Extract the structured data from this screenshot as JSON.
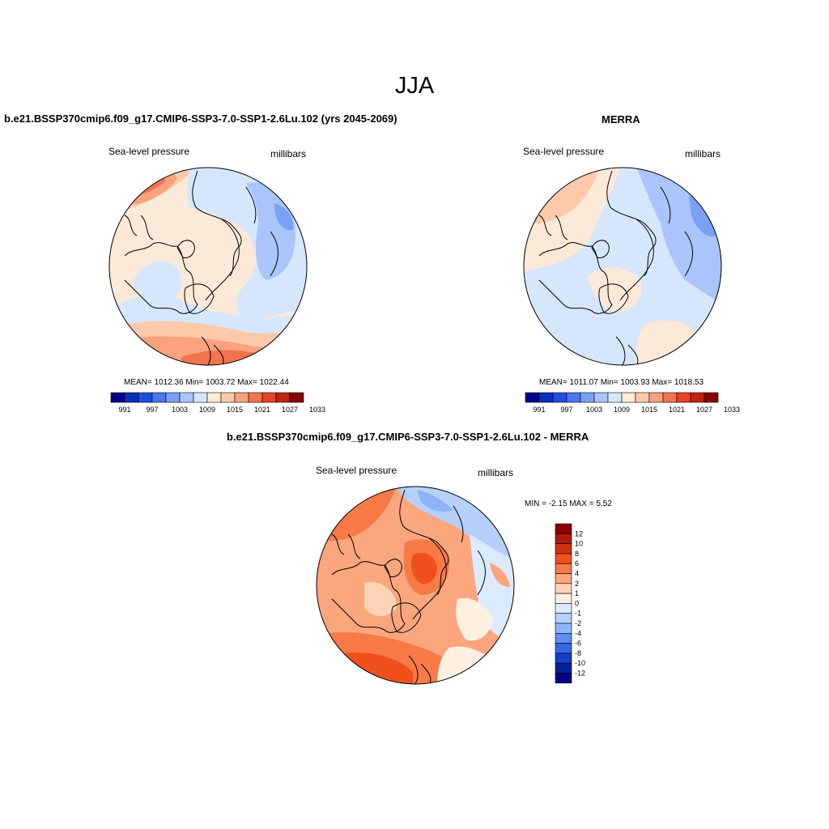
{
  "title": "JJA",
  "panels": [
    {
      "id": "model",
      "title": "b.e21.BSSP370cmip6.f09_g17.CMIP6-SSP3-7.0-SSP1-2.6Lu.102 (yrs 2045-2069)",
      "left_label": "Sea-level pressure",
      "right_label": "millibars",
      "stats": "MEAN= 1012.36  Min= 1003.72  Max= 1022.44",
      "colorbar_ticks": [
        "991",
        "997",
        "1003",
        "1009",
        "1015",
        "1021",
        "1027",
        "1033"
      ]
    },
    {
      "id": "obs",
      "title": "MERRA",
      "left_label": "Sea-level pressure",
      "right_label": "millibars",
      "stats": "MEAN= 1011.07  Min= 1003.93  Max= 1018.53",
      "colorbar_ticks": [
        "991",
        "997",
        "1003",
        "1009",
        "1015",
        "1021",
        "1027",
        "1033"
      ]
    },
    {
      "id": "diff",
      "title": "b.e21.BSSP370cmip6.f09_g17.CMIP6-SSP3-7.0-SSP1-2.6Lu.102 - MERRA",
      "left_label": "Sea-level pressure",
      "right_label": "millibars",
      "stats": "MIN =  -2.15 MAX =   5.52",
      "colorbar_ticks": [
        "12",
        "10",
        "8",
        "6",
        "4",
        "2",
        "1",
        "0",
        "-1",
        "-2",
        "-4",
        "-6",
        "-8",
        "-10",
        "-12"
      ]
    }
  ],
  "colors": {
    "abs_scale": [
      "#00008b",
      "#0a2fb8",
      "#1f4fdc",
      "#4b77ef",
      "#7ba0f7",
      "#a9c5fb",
      "#d6e7fd",
      "#fde9d7",
      "#fcc9ab",
      "#f9a27d",
      "#f3734f",
      "#e24425",
      "#c4230f",
      "#8b0000"
    ],
    "diff_scale": [
      "#8b0000",
      "#b21a08",
      "#d33212",
      "#f0501c",
      "#f77a47",
      "#fca67e",
      "#fdd4b7",
      "#fdf0e2",
      "#dceafd",
      "#b6d0fb",
      "#8fb3f7",
      "#5f8ef1",
      "#3467e4",
      "#143fc6",
      "#062098",
      "#00008b"
    ]
  }
}
